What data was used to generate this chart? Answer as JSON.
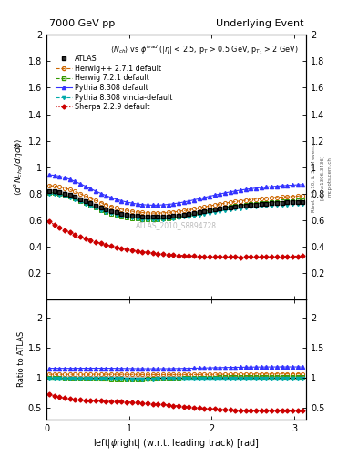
{
  "title_left": "7000 GeV pp",
  "title_right": "Underlying Event",
  "annotation": "$\\langle N_{ch}\\rangle$ vs $\\phi^{lead}$ (|$\\eta$| < 2.5, p$_T$ > 0.5 GeV, p$_{T_1}$ > 2 GeV)",
  "watermark": "ATLAS_2010_S8894728",
  "right_label_top": "Rivet 3.1.10, ≥ 3.4M events",
  "right_label_mid": "[arXiv:1306.3436]",
  "right_label_bot": "mcplots.cern.ch",
  "ylabel_main": "$\\langle d^2 N_{chg}/d\\eta d\\phi \\rangle$",
  "ylabel_ratio": "Ratio to ATLAS",
  "xlabel": "left|$\\phi$right| (w.r.t. leading track) [rad]",
  "xlim": [
    0,
    3.14159
  ],
  "ylim_main": [
    0.0,
    2.0
  ],
  "ylim_ratio": [
    0.3,
    2.3
  ],
  "yticks_main": [
    0.2,
    0.4,
    0.6,
    0.8,
    1.0,
    1.2,
    1.4,
    1.6,
    1.8,
    2.0
  ],
  "ytick_labels_main": [
    "0.2",
    "0.4",
    "0.6",
    "0.8",
    "1",
    "1.2",
    "1.4",
    "1.6",
    "1.8",
    "2"
  ],
  "yticks_ratio": [
    0.5,
    1.0,
    1.5,
    2.0
  ],
  "ytick_labels_ratio": [
    "0.5",
    "1",
    "1.5",
    "2"
  ],
  "xticks": [
    0,
    1,
    2,
    3
  ],
  "xtick_labels": [
    "0",
    "1",
    "2",
    "3"
  ],
  "series_labels": [
    "ATLAS",
    "Herwig++ 2.7.1 default",
    "Herwig 7.2.1 default",
    "Pythia 8.308 default",
    "Pythia 8.308 vincia-default",
    "Sherpa 2.2.9 default"
  ],
  "series_colors": [
    "#000000",
    "#cc6600",
    "#339900",
    "#3333ff",
    "#00aaaa",
    "#cc0000"
  ],
  "series_markers": [
    "s",
    "o",
    "s",
    "^",
    "v",
    "D"
  ],
  "series_linestyles": [
    "none",
    "--",
    "--",
    "-",
    "--",
    ":"
  ],
  "series_fillcolors": [
    "#333333",
    "none",
    "none",
    "#3333ff",
    "#00aaaa",
    "#cc0000"
  ],
  "background_color": "#ffffff"
}
